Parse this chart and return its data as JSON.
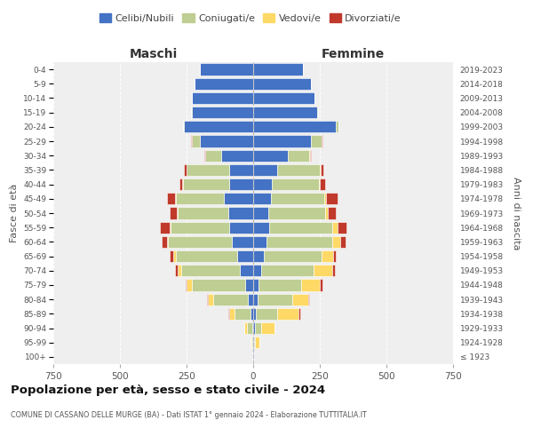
{
  "age_groups": [
    "100+",
    "95-99",
    "90-94",
    "85-89",
    "80-84",
    "75-79",
    "70-74",
    "65-69",
    "60-64",
    "55-59",
    "50-54",
    "45-49",
    "40-44",
    "35-39",
    "30-34",
    "25-29",
    "20-24",
    "15-19",
    "10-14",
    "5-9",
    "0-4"
  ],
  "birth_years": [
    "≤ 1923",
    "1924-1928",
    "1929-1933",
    "1934-1938",
    "1939-1943",
    "1944-1948",
    "1949-1953",
    "1954-1958",
    "1959-1963",
    "1964-1968",
    "1969-1973",
    "1974-1978",
    "1979-1983",
    "1984-1988",
    "1989-1993",
    "1994-1998",
    "1999-2003",
    "2004-2008",
    "2009-2013",
    "2014-2018",
    "2019-2023"
  ],
  "maschi": {
    "celibi": [
      2,
      3,
      5,
      10,
      20,
      30,
      50,
      60,
      80,
      90,
      95,
      110,
      90,
      90,
      120,
      200,
      260,
      230,
      230,
      220,
      200
    ],
    "coniugati": [
      1,
      5,
      20,
      60,
      130,
      200,
      220,
      230,
      240,
      220,
      190,
      180,
      175,
      160,
      60,
      30,
      5,
      2,
      0,
      0,
      0
    ],
    "vedovi": [
      0,
      2,
      10,
      20,
      20,
      20,
      15,
      10,
      5,
      5,
      3,
      2,
      1,
      1,
      0,
      0,
      0,
      0,
      0,
      0,
      0
    ],
    "divorziati": [
      0,
      0,
      0,
      5,
      5,
      5,
      10,
      15,
      20,
      35,
      25,
      30,
      10,
      10,
      5,
      2,
      0,
      0,
      0,
      0,
      0
    ]
  },
  "femmine": {
    "nubili": [
      2,
      3,
      5,
      10,
      15,
      20,
      30,
      40,
      50,
      60,
      55,
      65,
      70,
      90,
      130,
      215,
      310,
      240,
      230,
      215,
      185
    ],
    "coniugate": [
      1,
      5,
      25,
      80,
      130,
      160,
      195,
      215,
      245,
      235,
      215,
      200,
      175,
      160,
      80,
      40,
      10,
      3,
      0,
      0,
      0
    ],
    "vedove": [
      1,
      15,
      50,
      80,
      60,
      70,
      70,
      45,
      30,
      20,
      10,
      8,
      5,
      2,
      2,
      2,
      0,
      0,
      0,
      0,
      0
    ],
    "divorziate": [
      0,
      0,
      0,
      5,
      5,
      10,
      10,
      10,
      20,
      35,
      30,
      45,
      20,
      10,
      5,
      3,
      0,
      0,
      0,
      0,
      0
    ]
  },
  "colors": {
    "celibi": "#4472C4",
    "coniugati": "#BFCE93",
    "vedovi": "#FFD966",
    "divorziati": "#C0392B"
  },
  "title": "Popolazione per età, sesso e stato civile - 2024",
  "subtitle": "COMUNE DI CASSANO DELLE MURGE (BA) - Dati ISTAT 1° gennaio 2024 - Elaborazione TUTTITALIA.IT",
  "xlabel_left": "Maschi",
  "xlabel_right": "Femmine",
  "ylabel_left": "Fasce di età",
  "ylabel_right": "Anni di nascita",
  "xlim": 750,
  "legend_labels": [
    "Celibi/Nubili",
    "Coniugati/e",
    "Vedovi/e",
    "Divorziati/e"
  ],
  "background_color": "#ffffff",
  "plot_bg_color": "#efefef"
}
